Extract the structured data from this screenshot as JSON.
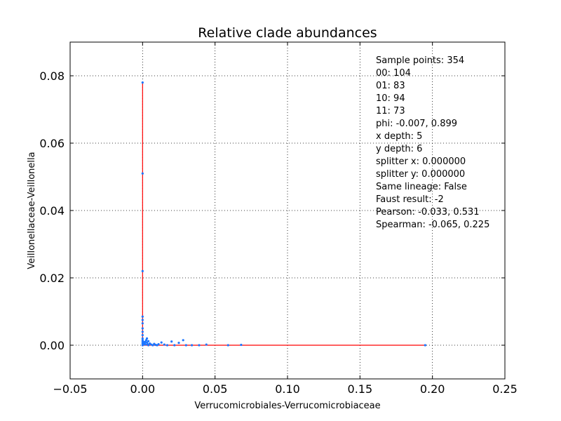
{
  "chart_data": {
    "type": "scatter",
    "title": "Relative clade abundances",
    "xlabel": "Verrucomicrobiales-Verrucomicrobiaceae",
    "ylabel": "Veillonellaceae-Veillonella",
    "xlim": [
      -0.05,
      0.25
    ],
    "ylim": [
      -0.01,
      0.09
    ],
    "xticks": [
      -0.05,
      0.0,
      0.05,
      0.1,
      0.15,
      0.2,
      0.25
    ],
    "xtick_labels": [
      "−0.05",
      "0.00",
      "0.05",
      "0.10",
      "0.15",
      "0.20",
      "0.25"
    ],
    "yticks": [
      0.0,
      0.02,
      0.04,
      0.06,
      0.08
    ],
    "ytick_labels": [
      "0.00",
      "0.02",
      "0.04",
      "0.06",
      "0.08"
    ],
    "grid": true,
    "grid_style": "dotted",
    "stats_placement": "top-right",
    "colors": {
      "points": "#1f77ff",
      "lines": "#ff0000"
    },
    "stats": [
      "Sample points: 354",
      "00: 104",
      "01: 83",
      "10: 94",
      "11: 73",
      "phi: -0.007, 0.899",
      "x depth: 5",
      "y depth: 6",
      "splitter x: 0.000000",
      "splitter y: 0.000000",
      "Same lineage: False",
      "Faust result: -2",
      "Pearson: -0.033, 0.531",
      "Spearman: -0.065, 0.225"
    ],
    "reference_lines": [
      {
        "x": [
          0.0,
          0.0
        ],
        "y": [
          0.0,
          0.078
        ]
      },
      {
        "x": [
          0.0,
          0.195
        ],
        "y": [
          0.0,
          0.0
        ]
      }
    ],
    "points": [
      [
        0.0,
        0.078
      ],
      [
        0.0,
        0.051
      ],
      [
        0.0,
        0.022
      ],
      [
        0.0,
        0.0085
      ],
      [
        0.0,
        0.0075
      ],
      [
        0.0,
        0.0065
      ],
      [
        0.0,
        0.005
      ],
      [
        0.0,
        0.004
      ],
      [
        0.0,
        0.003
      ],
      [
        0.0,
        0.002
      ],
      [
        0.0,
        0.0015
      ],
      [
        0.0,
        0.001
      ],
      [
        0.0,
        0.0005
      ],
      [
        0.0,
        0.0
      ],
      [
        0.0005,
        0.0008
      ],
      [
        0.001,
        0.0003
      ],
      [
        0.001,
        0.001
      ],
      [
        0.0015,
        0.0005
      ],
      [
        0.002,
        0.0002
      ],
      [
        0.002,
        0.001
      ],
      [
        0.0025,
        0.0015
      ],
      [
        0.003,
        0.002
      ],
      [
        0.003,
        0.0008
      ],
      [
        0.0035,
        0.0003
      ],
      [
        0.004,
        0.0012
      ],
      [
        0.004,
        0.0
      ],
      [
        0.005,
        0.0005
      ],
      [
        0.006,
        0.0002
      ],
      [
        0.007,
        0.0
      ],
      [
        0.008,
        0.0004
      ],
      [
        0.009,
        0.0001
      ],
      [
        0.01,
        0.0
      ],
      [
        0.011,
        0.0003
      ],
      [
        0.013,
        0.0008
      ],
      [
        0.015,
        0.0002
      ],
      [
        0.017,
        0.0
      ],
      [
        0.02,
        0.0011
      ],
      [
        0.022,
        0.0
      ],
      [
        0.025,
        0.0007
      ],
      [
        0.028,
        0.0015
      ],
      [
        0.03,
        0.0
      ],
      [
        0.034,
        0.0
      ],
      [
        0.039,
        0.0
      ],
      [
        0.044,
        0.0002
      ],
      [
        0.059,
        0.0
      ],
      [
        0.068,
        0.0001
      ],
      [
        0.195,
        0.0
      ]
    ]
  }
}
